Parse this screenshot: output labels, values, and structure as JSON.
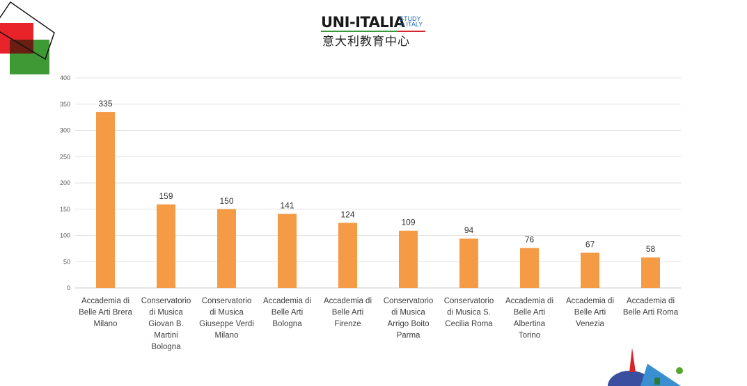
{
  "logo": {
    "main": "UNI-ITALIA",
    "study_line1": "STUDY",
    "study_line2": "in ITALY",
    "chinese": "意大利教育中心"
  },
  "colors": {
    "bar": "#f59b45",
    "grid": "#e2e2e2",
    "axis": "#c8c8c8"
  },
  "chart_data": {
    "type": "bar",
    "categories": [
      [
        "Accademia di",
        "Belle Arti Brera",
        "Milano"
      ],
      [
        "Conservatorio",
        "di Musica",
        "Giovan B.",
        "Martini",
        "Bologna"
      ],
      [
        "Conservatorio",
        "di Musica",
        "Giuseppe Verdi",
        "Milano"
      ],
      [
        "Accademia di",
        "Belle Arti",
        "Bologna"
      ],
      [
        "Accademia di",
        "Belle Arti",
        "Firenze"
      ],
      [
        "Conservatorio",
        "di Musica",
        "Arrigo Boito",
        "Parma"
      ],
      [
        "Conservatorio",
        "di Musica S.",
        "Cecilia Roma"
      ],
      [
        "Accademia di",
        "Belle Arti",
        "Albertina",
        "Torino"
      ],
      [
        "Accademia di",
        "Belle Arti",
        "Venezia"
      ],
      [
        "Accademia di",
        "Belle Arti Roma"
      ]
    ],
    "values": [
      335,
      159,
      150,
      141,
      124,
      109,
      94,
      76,
      67,
      58
    ],
    "ylim": [
      0,
      400
    ],
    "yticks": [
      0,
      50,
      100,
      150,
      200,
      250,
      300,
      350,
      400
    ],
    "grid": true,
    "data_labels": true
  }
}
